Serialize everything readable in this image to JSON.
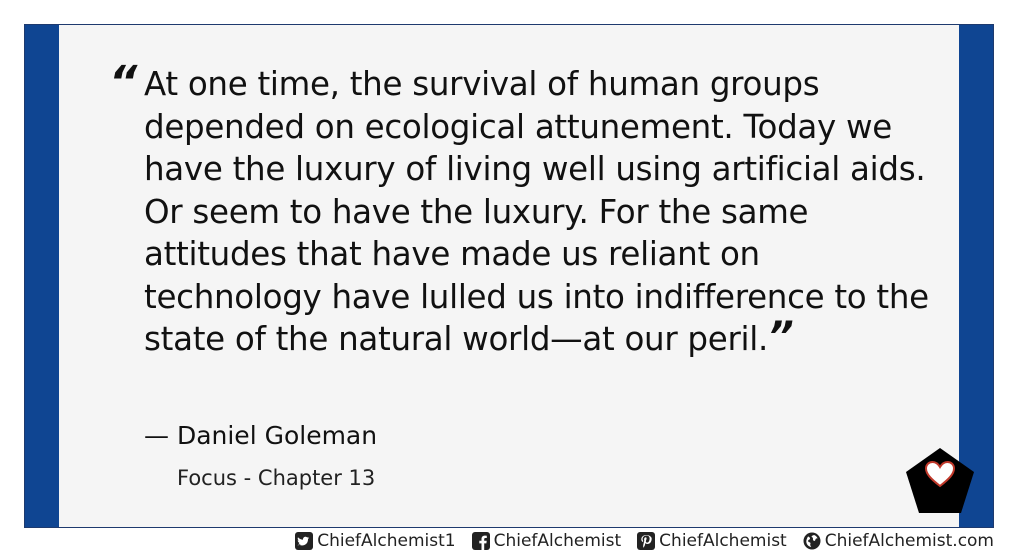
{
  "quote": {
    "open_mark": "“",
    "text": "At one time, the survival of human groups depended on ecological attunement. Today we have the luxury of living well using artificial aids. Or seem to have the luxury. For the same attitudes that have made us reliant on technology have lulled us into indifference to the state of the natural world—at our peril.",
    "close_mark": "”",
    "author": "— Daniel Goleman",
    "source": "Focus - Chapter 13"
  },
  "logo": {
    "icon": "pentagon-heart-icon",
    "pentagon_color": "#000000",
    "heart_color": "#ffffff",
    "heart_outline": "#c0392b"
  },
  "colors": {
    "frame": "#0f4592",
    "card": "#f5f5f5",
    "text": "#111111"
  },
  "footer": {
    "links": [
      {
        "icon": "twitter-icon",
        "label": "ChiefAlchemist1"
      },
      {
        "icon": "facebook-icon",
        "label": "ChiefAlchemist"
      },
      {
        "icon": "pinterest-icon",
        "label": "ChiefAlchemist"
      },
      {
        "icon": "globe-icon",
        "label": "ChiefAlchemist.com"
      }
    ]
  }
}
